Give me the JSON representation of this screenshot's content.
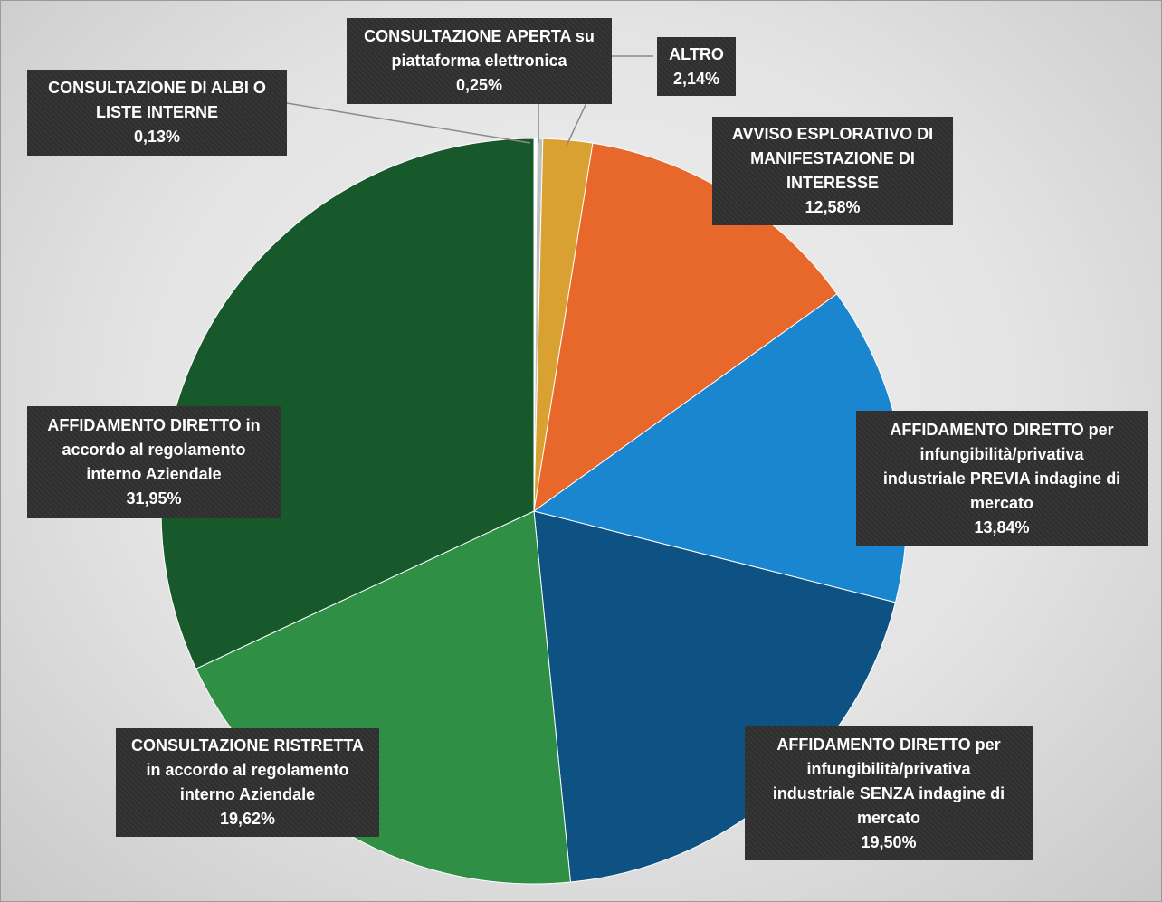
{
  "chart_data": {
    "type": "pie",
    "slices": [
      {
        "label": "CONSULTAZIONE DI ALBI O LISTE INTERNE",
        "value": 0.13,
        "value_label": "0,13%",
        "color": "#ffffff"
      },
      {
        "label": "CONSULTAZIONE APERTA su piattaforma elettronica",
        "value": 0.25,
        "value_label": "0,25%",
        "color": "#c0c0c0"
      },
      {
        "label": "ALTRO",
        "value": 2.14,
        "value_label": "2,14%",
        "color": "#d9a032"
      },
      {
        "label": "AVVISO ESPLORATIVO DI MANIFESTAZIONE DI INTERESSE",
        "value": 12.58,
        "value_label": "12,58%",
        "color": "#e8672a"
      },
      {
        "label": "AFFIDAMENTO DIRETTO per infungibilità/privativa industriale PREVIA indagine di mercato",
        "value": 13.84,
        "value_label": "13,84%",
        "color": "#1a86cf"
      },
      {
        "label": "AFFIDAMENTO DIRETTO per infungibilità/privativa industriale SENZA indagine di mercato",
        "value": 19.5,
        "value_label": "19,50%",
        "color": "#0d5282"
      },
      {
        "label": "CONSULTAZIONE RISTRETTA in accordo al regolamento interno Aziendale",
        "value": 19.62,
        "value_label": "19,62%",
        "color": "#2f8f45"
      },
      {
        "label": "AFFIDAMENTO DIRETTO in accordo al regolamento interno Aziendale",
        "value": 31.95,
        "value_label": "31,95%",
        "color": "#17592a"
      }
    ],
    "start_angle": "12 o'clock",
    "direction": "clockwise",
    "label_lines": [
      [
        "CONSULTAZIONE DI ALBI O",
        "LISTE INTERNE"
      ],
      [
        "CONSULTAZIONE APERTA su",
        "piattaforma elettronica"
      ],
      [
        "ALTRO"
      ],
      [
        "AVVISO ESPLORATIVO DI",
        "MANIFESTAZIONE DI",
        "INTERESSE"
      ],
      [
        "AFFIDAMENTO DIRETTO per",
        "infungibilità/privativa",
        "industriale PREVIA indagine di",
        "mercato"
      ],
      [
        "AFFIDAMENTO DIRETTO per",
        "infungibilità/privativa",
        "industriale SENZA indagine di",
        "mercato"
      ],
      [
        "CONSULTAZIONE RISTRETTA",
        "in accordo al regolamento",
        "interno Aziendale"
      ],
      [
        "AFFIDAMENTO DIRETTO in",
        "accordo al regolamento",
        "interno Aziendale"
      ]
    ],
    "legend": "none",
    "label_box_color": "#2e2e2e"
  }
}
